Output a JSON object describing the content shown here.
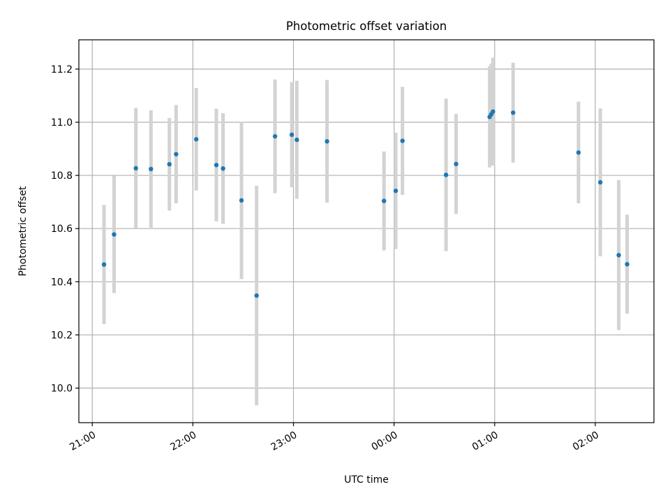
{
  "chart_data": {
    "type": "scatter",
    "title": "Photometric offset variation",
    "xlabel": "UTC time",
    "ylabel": "Photometric offset",
    "x_axis_type": "time",
    "x_tick_labels": [
      "21:00",
      "22:00",
      "23:00",
      "00:00",
      "01:00",
      "02:00"
    ],
    "y_ticks": [
      10.0,
      10.2,
      10.4,
      10.6,
      10.8,
      11.0,
      11.2
    ],
    "y_tick_labels": [
      "10.0",
      "10.2",
      "10.4",
      "10.6",
      "10.8",
      "11.0",
      "11.2"
    ],
    "xlim": [
      "20:52",
      "02:35"
    ],
    "ylim": [
      9.87,
      11.31
    ],
    "grid": true,
    "legend": false,
    "error_bar_color": "#d3d3d3",
    "point_color": "#1f77b4",
    "series": [
      {
        "points": [
          {
            "time": "21:07",
            "y": 10.465,
            "yerr": 0.224
          },
          {
            "time": "21:13",
            "y": 10.578,
            "yerr": 0.221
          },
          {
            "time": "21:26",
            "y": 10.827,
            "yerr": 0.227
          },
          {
            "time": "21:35",
            "y": 10.824,
            "yerr": 0.221
          },
          {
            "time": "21:46",
            "y": 10.842,
            "yerr": 0.174
          },
          {
            "time": "21:50",
            "y": 10.88,
            "yerr": 0.185
          },
          {
            "time": "22:02",
            "y": 10.936,
            "yerr": 0.193
          },
          {
            "time": "22:14",
            "y": 10.839,
            "yerr": 0.212
          },
          {
            "time": "22:18",
            "y": 10.826,
            "yerr": 0.208
          },
          {
            "time": "22:29",
            "y": 10.706,
            "yerr": 0.296
          },
          {
            "time": "22:38",
            "y": 10.348,
            "yerr": 0.413
          },
          {
            "time": "22:49",
            "y": 10.947,
            "yerr": 0.214
          },
          {
            "time": "22:59",
            "y": 10.953,
            "yerr": 0.198
          },
          {
            "time": "23:02",
            "y": 10.934,
            "yerr": 0.222
          },
          {
            "time": "23:20",
            "y": 10.928,
            "yerr": 0.231
          },
          {
            "time": "23:54",
            "y": 10.704,
            "yerr": 0.186
          },
          {
            "time": "00:01",
            "y": 10.742,
            "yerr": 0.219
          },
          {
            "time": "00:05",
            "y": 10.93,
            "yerr": 0.203
          },
          {
            "time": "00:31",
            "y": 10.802,
            "yerr": 0.287
          },
          {
            "time": "00:37",
            "y": 10.843,
            "yerr": 0.188
          },
          {
            "time": "00:57",
            "y": 11.02,
            "yerr": 0.19
          },
          {
            "time": "00:58",
            "y": 11.03,
            "yerr": 0.19
          },
          {
            "time": "00:59",
            "y": 11.04,
            "yerr": 0.203
          },
          {
            "time": "01:11",
            "y": 11.036,
            "yerr": 0.188
          },
          {
            "time": "01:50",
            "y": 10.886,
            "yerr": 0.191
          },
          {
            "time": "02:03",
            "y": 10.774,
            "yerr": 0.278
          },
          {
            "time": "02:14",
            "y": 10.5,
            "yerr": 0.282
          },
          {
            "time": "02:19",
            "y": 10.466,
            "yerr": 0.186
          }
        ]
      }
    ]
  }
}
